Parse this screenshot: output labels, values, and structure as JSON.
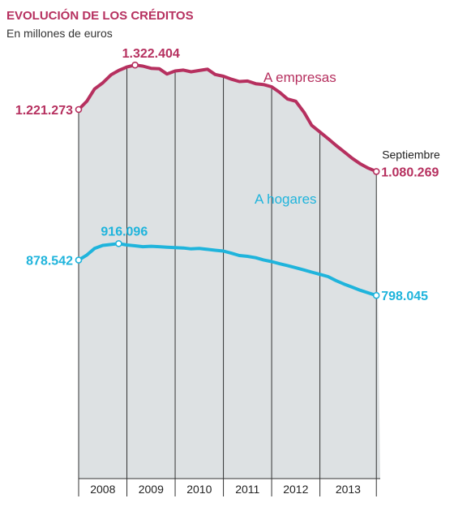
{
  "title": "EVOLUCIÓN DE LOS CRÉDITOS",
  "subtitle": "En millones de euros",
  "colors": {
    "title": "#b6305f",
    "empresas": "#b6305f",
    "hogares": "#1fb4dc",
    "area_fill": "#dde1e3",
    "grid": "#333333"
  },
  "chart_data": {
    "type": "line",
    "title": "EVOLUCIÓN DE LOS CRÉDITOS",
    "subtitle": "En millones de euros",
    "x_range": [
      2007.5,
      2013.75
    ],
    "ylim": [
      0,
      1400000
    ],
    "year_ticks": [
      "2008",
      "2009",
      "2010",
      "2011",
      "2012",
      "2013"
    ],
    "series": [
      {
        "name": "A empresas",
        "color": "#b6305f",
        "x": [
          2007.5,
          2007.67,
          2007.83,
          2008.0,
          2008.17,
          2008.33,
          2008.5,
          2008.67,
          2008.83,
          2009.0,
          2009.17,
          2009.33,
          2009.5,
          2009.67,
          2009.83,
          2010.0,
          2010.17,
          2010.33,
          2010.5,
          2010.67,
          2010.83,
          2011.0,
          2011.17,
          2011.33,
          2011.5,
          2011.67,
          2011.83,
          2012.0,
          2012.17,
          2012.33,
          2012.5,
          2012.67,
          2012.83,
          2013.0,
          2013.17,
          2013.33,
          2013.5,
          2013.67
        ],
        "values": [
          1221273,
          1240000,
          1268000,
          1282000,
          1300000,
          1310000,
          1318000,
          1322404,
          1320000,
          1315000,
          1314000,
          1302000,
          1309000,
          1311000,
          1307000,
          1310000,
          1313000,
          1301000,
          1297000,
          1290000,
          1285000,
          1286000,
          1280000,
          1278000,
          1273000,
          1260000,
          1245000,
          1240000,
          1215000,
          1185000,
          1170000,
          1155000,
          1140000,
          1125000,
          1110000,
          1098000,
          1088000,
          1080269
        ]
      },
      {
        "name": "A hogares",
        "color": "#1fb4dc",
        "x": [
          2007.5,
          2007.67,
          2007.83,
          2008.0,
          2008.17,
          2008.33,
          2008.5,
          2008.67,
          2008.83,
          2009.0,
          2009.17,
          2009.33,
          2009.5,
          2009.67,
          2009.83,
          2010.0,
          2010.17,
          2010.33,
          2010.5,
          2010.67,
          2010.83,
          2011.0,
          2011.17,
          2011.33,
          2011.5,
          2011.67,
          2011.83,
          2012.0,
          2012.17,
          2012.33,
          2012.5,
          2012.67,
          2012.83,
          2013.0,
          2013.17,
          2013.33,
          2013.5,
          2013.67
        ],
        "values": [
          878542,
          890000,
          905000,
          912000,
          914000,
          916096,
          913000,
          911000,
          909000,
          910000,
          909000,
          908000,
          907000,
          906000,
          904000,
          905000,
          903000,
          901000,
          899000,
          894000,
          889000,
          887000,
          884000,
          879000,
          875000,
          870000,
          866000,
          861000,
          856000,
          851000,
          846000,
          841000,
          832000,
          824000,
          817000,
          810000,
          804000,
          798045
        ]
      }
    ],
    "annotations": {
      "empresas_start": "1.221.273",
      "empresas_max": "1.322.404",
      "empresas_end": "1.080.269",
      "hogares_start": "878.542",
      "hogares_max": "916.096",
      "hogares_end": "798.045",
      "end_note": "Septiembre"
    }
  }
}
